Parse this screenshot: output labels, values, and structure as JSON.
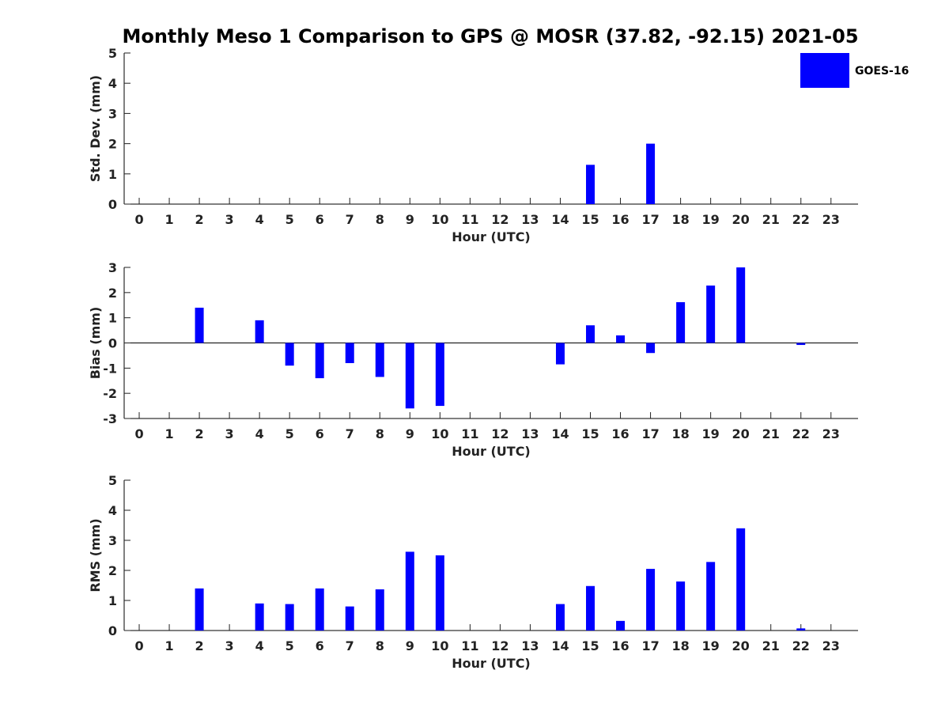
{
  "figure": {
    "title": "Monthly Meso 1 Comparison to GPS @ MOSR (37.82, -92.15) 2021-05"
  },
  "legend": {
    "label": "GOES-16",
    "color": "#0000ff",
    "placement": "top-right"
  },
  "chart_data": [
    {
      "type": "bar",
      "name": "std-dev",
      "ylabel": "Std. Dev. (mm)",
      "xlabel": "Hour (UTC)",
      "ylim": [
        0,
        5
      ],
      "yticks": [
        0,
        1,
        2,
        3,
        4,
        5
      ],
      "x": [
        0,
        1,
        2,
        3,
        4,
        5,
        6,
        7,
        8,
        9,
        10,
        11,
        12,
        13,
        14,
        15,
        16,
        17,
        18,
        19,
        20,
        21,
        22,
        23
      ],
      "values": [
        null,
        null,
        null,
        null,
        null,
        null,
        null,
        null,
        null,
        null,
        null,
        null,
        null,
        null,
        null,
        1.3,
        null,
        2.0,
        null,
        null,
        null,
        null,
        null,
        null
      ],
      "grid": false
    },
    {
      "type": "bar",
      "name": "bias",
      "ylabel": "Bias (mm)",
      "xlabel": "Hour (UTC)",
      "ylim": [
        -3,
        3
      ],
      "yticks": [
        -3,
        -2,
        -1,
        0,
        1,
        2,
        3
      ],
      "x": [
        0,
        1,
        2,
        3,
        4,
        5,
        6,
        7,
        8,
        9,
        10,
        11,
        12,
        13,
        14,
        15,
        16,
        17,
        18,
        19,
        20,
        21,
        22,
        23
      ],
      "values": [
        null,
        null,
        1.4,
        null,
        0.9,
        -0.9,
        -1.4,
        -0.8,
        -1.35,
        -2.6,
        -2.5,
        null,
        null,
        null,
        -0.85,
        0.7,
        0.3,
        -0.4,
        1.62,
        2.28,
        3.0,
        null,
        -0.08,
        null
      ],
      "zero_line": true,
      "grid": false
    },
    {
      "type": "bar",
      "name": "rms",
      "ylabel": "RMS (mm)",
      "xlabel": "Hour (UTC)",
      "ylim": [
        0,
        5
      ],
      "yticks": [
        0,
        1,
        2,
        3,
        4,
        5
      ],
      "x": [
        0,
        1,
        2,
        3,
        4,
        5,
        6,
        7,
        8,
        9,
        10,
        11,
        12,
        13,
        14,
        15,
        16,
        17,
        18,
        19,
        20,
        21,
        22,
        23
      ],
      "values": [
        null,
        null,
        1.4,
        null,
        0.9,
        0.88,
        1.4,
        0.8,
        1.37,
        2.62,
        2.5,
        null,
        null,
        null,
        0.88,
        1.48,
        0.32,
        2.05,
        1.63,
        2.28,
        3.4,
        null,
        0.07,
        null
      ],
      "grid": false
    }
  ]
}
